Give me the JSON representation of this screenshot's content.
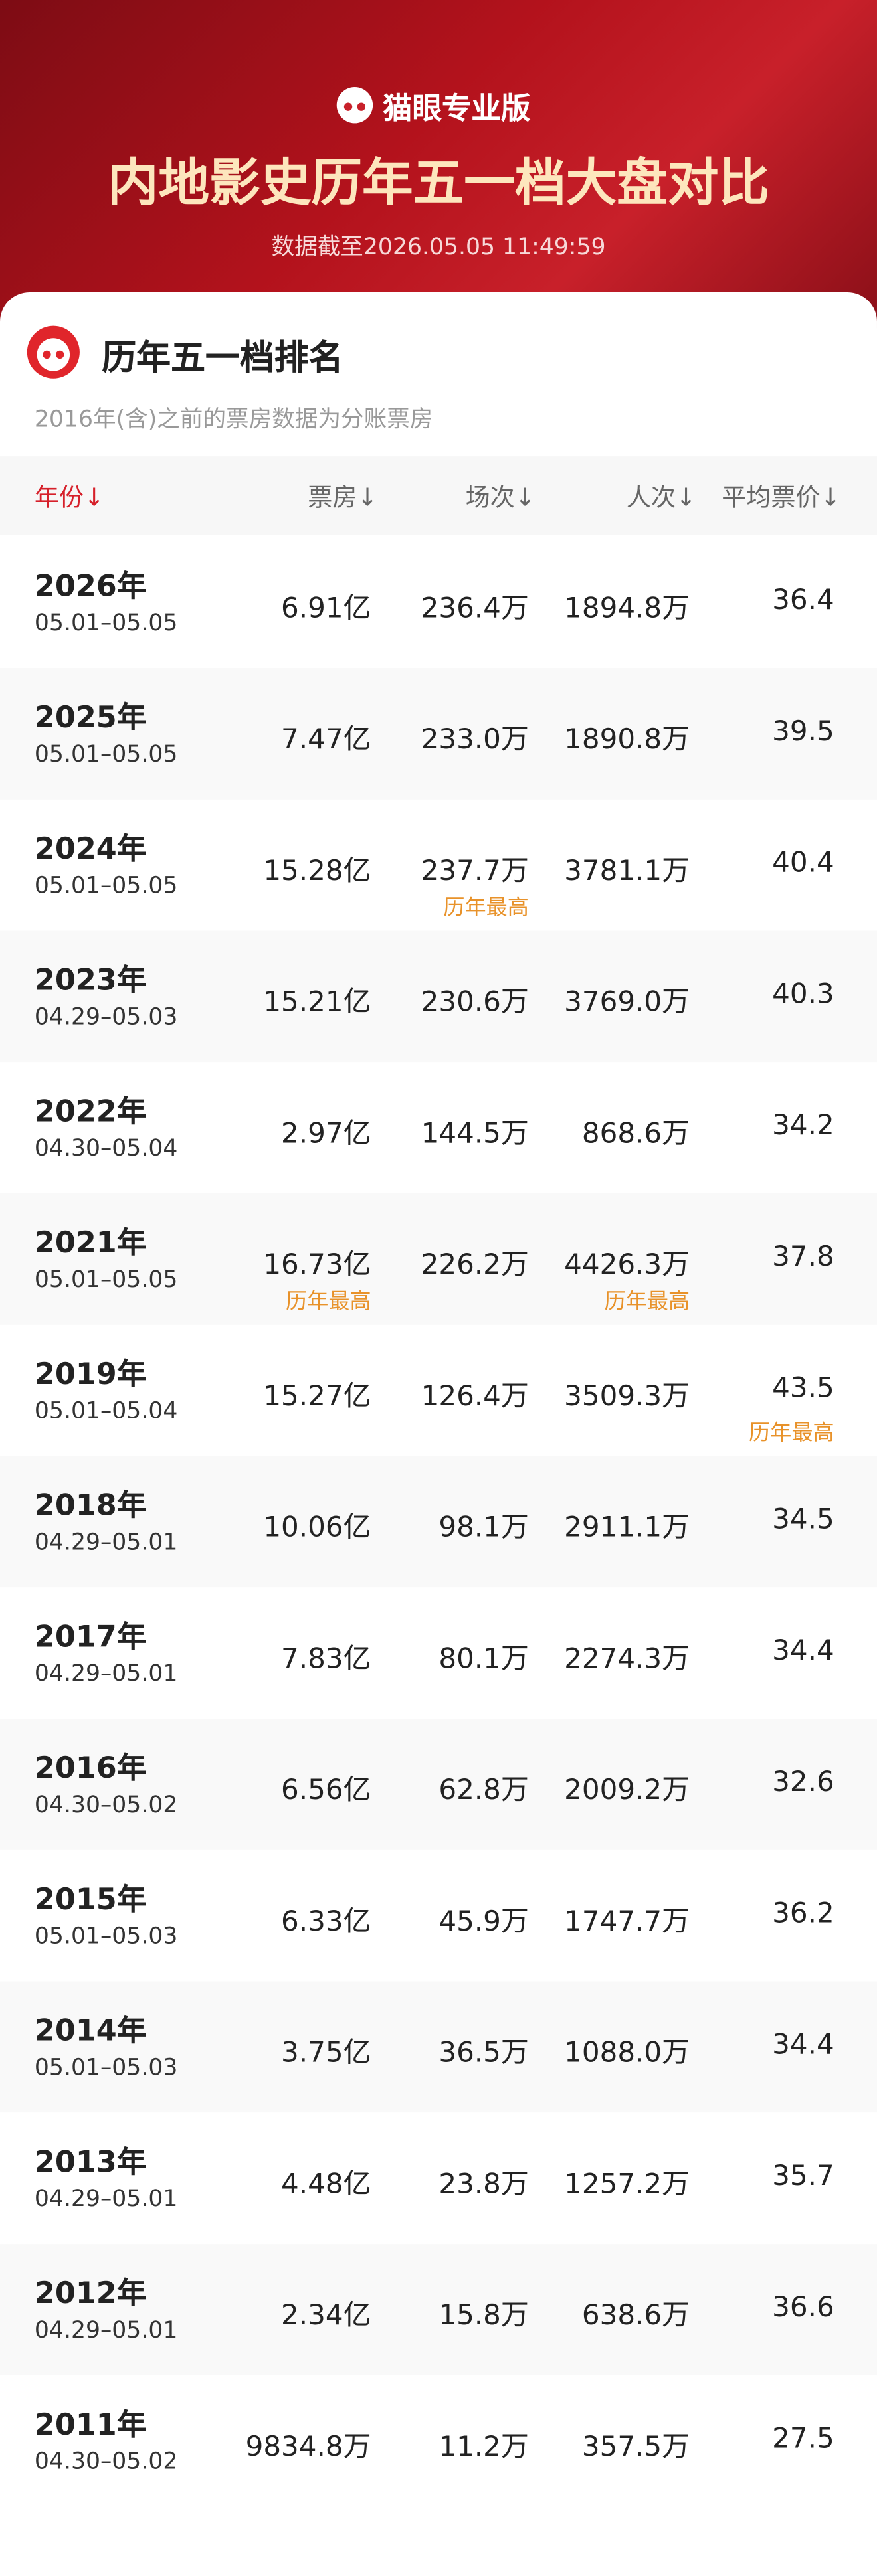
{
  "header": {
    "brand": "猫眼专业版",
    "title": "内地影史历年五一档大盘对比",
    "subtitle": "数据截至2026.05.05 11:49:59"
  },
  "section": {
    "title": "历年五一档排名",
    "note": "2016年(含)之前的票房数据为分账票房"
  },
  "table": {
    "columns": [
      "年份↓",
      "票房↓",
      "场次↓",
      "人次↓",
      "平均票价↓"
    ],
    "rows": [
      {
        "year": "2026年",
        "period": "05.01–05.05",
        "cells": [
          {
            "text": "6.91亿"
          },
          {
            "text": "236.4万"
          },
          {
            "text": "1894.8万"
          },
          {
            "text": "36.4"
          }
        ]
      },
      {
        "year": "2025年",
        "period": "05.01–05.05",
        "cells": [
          {
            "text": "7.47亿"
          },
          {
            "text": "233.0万"
          },
          {
            "text": "1890.8万"
          },
          {
            "text": "39.5"
          }
        ]
      },
      {
        "year": "2024年",
        "period": "05.01–05.05",
        "cells": [
          {
            "text": "15.28亿"
          },
          {
            "text": "237.7万",
            "note": "历年最高"
          },
          {
            "text": "3781.1万"
          },
          {
            "text": "40.4"
          }
        ]
      },
      {
        "year": "2023年",
        "period": "04.29–05.03",
        "cells": [
          {
            "text": "15.21亿"
          },
          {
            "text": "230.6万"
          },
          {
            "text": "3769.0万"
          },
          {
            "text": "40.3"
          }
        ]
      },
      {
        "year": "2022年",
        "period": "04.30–05.04",
        "cells": [
          {
            "text": "2.97亿"
          },
          {
            "text": "144.5万"
          },
          {
            "text": "868.6万"
          },
          {
            "text": "34.2"
          }
        ]
      },
      {
        "year": "2021年",
        "period": "05.01–05.05",
        "cells": [
          {
            "text": "16.73亿",
            "note": "历年最高"
          },
          {
            "text": "226.2万"
          },
          {
            "text": "4426.3万",
            "note": "历年最高"
          },
          {
            "text": "37.8"
          }
        ]
      },
      {
        "year": "2019年",
        "period": "05.01–05.04",
        "cells": [
          {
            "text": "15.27亿"
          },
          {
            "text": "126.4万"
          },
          {
            "text": "3509.3万"
          },
          {
            "text": "43.5",
            "note": "历年最高"
          }
        ]
      },
      {
        "year": "2018年",
        "period": "04.29–05.01",
        "cells": [
          {
            "text": "10.06亿"
          },
          {
            "text": "98.1万"
          },
          {
            "text": "2911.1万"
          },
          {
            "text": "34.5"
          }
        ]
      },
      {
        "year": "2017年",
        "period": "04.29–05.01",
        "cells": [
          {
            "text": "7.83亿"
          },
          {
            "text": "80.1万"
          },
          {
            "text": "2274.3万"
          },
          {
            "text": "34.4"
          }
        ]
      },
      {
        "year": "2016年",
        "period": "04.30–05.02",
        "cells": [
          {
            "text": "6.56亿"
          },
          {
            "text": "62.8万"
          },
          {
            "text": "2009.2万"
          },
          {
            "text": "32.6"
          }
        ]
      },
      {
        "year": "2015年",
        "period": "05.01–05.03",
        "cells": [
          {
            "text": "6.33亿"
          },
          {
            "text": "45.9万"
          },
          {
            "text": "1747.7万"
          },
          {
            "text": "36.2"
          }
        ]
      },
      {
        "year": "2014年",
        "period": "05.01–05.03",
        "cells": [
          {
            "text": "3.75亿"
          },
          {
            "text": "36.5万"
          },
          {
            "text": "1088.0万"
          },
          {
            "text": "34.4"
          }
        ]
      },
      {
        "year": "2013年",
        "period": "04.29–05.01",
        "cells": [
          {
            "text": "4.48亿"
          },
          {
            "text": "23.8万"
          },
          {
            "text": "1257.2万"
          },
          {
            "text": "35.7"
          }
        ]
      },
      {
        "year": "2012年",
        "period": "04.29–05.01",
        "cells": [
          {
            "text": "2.34亿"
          },
          {
            "text": "15.8万"
          },
          {
            "text": "638.6万"
          },
          {
            "text": "36.6"
          }
        ]
      },
      {
        "year": "2011年",
        "period": "04.30–05.02",
        "cells": [
          {
            "text": "9834.8万"
          },
          {
            "text": "11.2万"
          },
          {
            "text": "357.5万"
          },
          {
            "text": "27.5"
          }
        ]
      }
    ]
  }
}
